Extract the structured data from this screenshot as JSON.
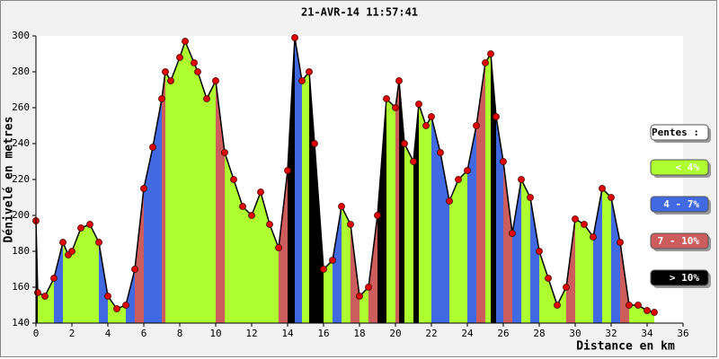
{
  "chart_data": {
    "type": "elevation-profile",
    "title": "21-AVR-14 11:57:41",
    "x_label": "Distance en km",
    "y_label": "Dénivelé en metres",
    "x": [
      0,
      0.1,
      0.5,
      1,
      1.5,
      1.8,
      2,
      2.5,
      3,
      3.5,
      4,
      4.5,
      5,
      5.5,
      6,
      6.5,
      7,
      7.2,
      7.5,
      8,
      8.3,
      8.8,
      9,
      9.5,
      10,
      10.5,
      11,
      11.5,
      12,
      12.5,
      13,
      13.5,
      14,
      14.4,
      14.8,
      15.2,
      15.5,
      16,
      16.5,
      17,
      17.5,
      18,
      18.5,
      19,
      19.5,
      20,
      20.2,
      20.5,
      21,
      21.3,
      21.7,
      22,
      22.5,
      23,
      23.5,
      24,
      24.5,
      25,
      25.3,
      25.6,
      26,
      26.5,
      27,
      27.5,
      28,
      28.5,
      29,
      29.5,
      30,
      30.5,
      31,
      31.5,
      32,
      32.5,
      33,
      33.5,
      34,
      34.4
    ],
    "y": [
      197,
      157,
      155,
      165,
      185,
      178,
      180,
      193,
      195,
      185,
      155,
      148,
      150,
      170,
      215,
      238,
      265,
      280,
      275,
      288,
      297,
      285,
      280,
      265,
      275,
      235,
      220,
      205,
      200,
      213,
      195,
      182,
      225,
      299,
      275,
      280,
      240,
      170,
      175,
      205,
      195,
      155,
      160,
      200,
      265,
      260,
      275,
      240,
      230,
      262,
      250,
      255,
      235,
      208,
      220,
      225,
      250,
      285,
      290,
      255,
      230,
      190,
      220,
      210,
      180,
      165,
      150,
      160,
      198,
      195,
      188,
      215,
      210,
      185,
      150,
      150,
      147,
      146
    ],
    "xlim": [
      0,
      36
    ],
    "xticks": [
      0,
      2,
      4,
      6,
      8,
      10,
      12,
      14,
      16,
      18,
      20,
      22,
      24,
      26,
      28,
      30,
      32,
      34,
      36
    ],
    "ylim": [
      140,
      300
    ],
    "yticks": [
      140,
      160,
      180,
      200,
      220,
      240,
      260,
      280,
      300
    ],
    "line_color": "#000000",
    "point_color": "#e00000",
    "legend_title": "Pentes :",
    "slope_classes": [
      {
        "name": "< 4%",
        "color": "#adff2f",
        "max": 4
      },
      {
        "name": "4 - 7%",
        "color": "#4169e1",
        "max": 7
      },
      {
        "name": "7 - 10%",
        "color": "#cd5c5c",
        "max": 10
      },
      {
        "name": "> 10%",
        "color": "#000000"
      }
    ]
  }
}
